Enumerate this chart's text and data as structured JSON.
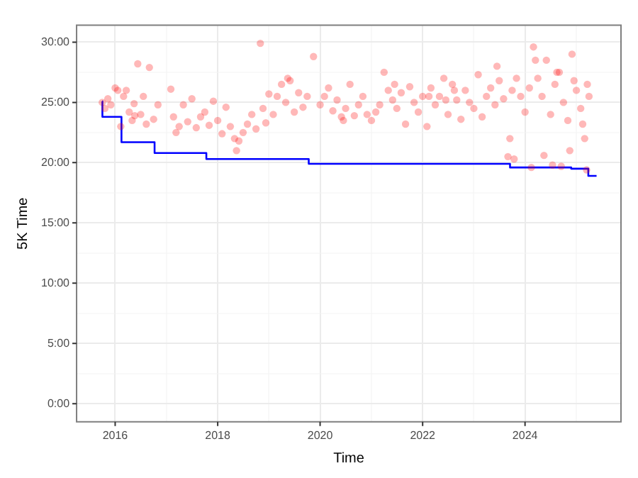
{
  "chart_data": {
    "type": "scatter",
    "xlabel": "Time",
    "ylabel": "5K Time",
    "grid": true,
    "legend": false,
    "xlim": [
      "2015-04",
      "2025-11-15"
    ],
    "ylim": [
      -1.5,
      31.4
    ],
    "xticks": [
      "2016",
      {
        "value": "2017",
        "label": null
      },
      "2018",
      {
        "value": "2019",
        "label": null
      },
      "2020",
      {
        "value": "2021",
        "label": null
      },
      "2022",
      {
        "value": "2023",
        "label": null
      },
      "2024",
      {
        "value": "2025",
        "label": null
      }
    ],
    "yticks": [
      {
        "value": 0,
        "label": "0:00"
      },
      {
        "value": 2.5,
        "label": null
      },
      {
        "value": 5,
        "label": "5:00"
      },
      {
        "value": 7.5,
        "label": null
      },
      {
        "value": 10,
        "label": "10:00"
      },
      {
        "value": 12.5,
        "label": null
      },
      {
        "value": 15,
        "label": "15:00"
      },
      {
        "value": 17.5,
        "label": null
      },
      {
        "value": 20,
        "label": "20:00"
      },
      {
        "value": 22.5,
        "label": null
      },
      {
        "value": 25,
        "label": "25:00"
      },
      {
        "value": 27.5,
        "label": null
      },
      {
        "value": 30,
        "label": "30:00"
      }
    ],
    "series": [
      {
        "color": "#ff0000",
        "marker": "circle",
        "x": [
          "2015-10-01",
          "2015-10-20",
          "2015-11-10",
          "2015-12-01",
          "2016-01-01",
          "2016-01-20",
          "2016-02-10",
          "2016-03-01",
          "2016-03-20",
          "2016-04-10",
          "2016-05-01",
          "2016-05-20",
          "2016-06-10",
          "2016-07-01",
          "2016-07-20",
          "2016-08-10",
          "2016-09-01",
          "2016-10-01",
          "2016-11-01",
          "2017-02-01",
          "2017-02-20",
          "2017-03-10",
          "2017-04-01",
          "2017-05-01",
          "2017-06-01",
          "2017-07-01",
          "2017-08-01",
          "2017-09-01",
          "2017-10-01",
          "2017-11-01",
          "2017-12-01",
          "2018-01-01",
          "2018-02-01",
          "2018-03-01",
          "2018-04-01",
          "2018-05-01",
          "2018-06-01",
          "2018-07-01",
          "2018-08-01",
          "2018-09-01",
          "2018-10-01",
          "2018-11-01",
          "2018-11-20",
          "2018-12-10",
          "2019-01-01",
          "2019-02-01",
          "2019-03-01",
          "2019-04-01",
          "2019-05-01",
          "2019-06-01",
          "2019-07-01",
          "2019-08-01",
          "2019-09-01",
          "2019-10-01",
          "2019-11-15",
          "2020-01-01",
          "2020-02-01",
          "2020-03-01",
          "2020-04-01",
          "2020-05-01",
          "2020-06-01",
          "2020-07-01",
          "2020-08-01",
          "2020-09-01",
          "2020-10-01",
          "2020-11-01",
          "2020-12-01",
          "2021-01-01",
          "2021-02-01",
          "2021-03-01",
          "2021-04-01",
          "2021-05-01",
          "2021-06-01",
          "2021-07-01",
          "2021-08-01",
          "2021-09-01",
          "2021-10-01",
          "2021-11-01",
          "2021-12-01",
          "2022-01-01",
          "2022-02-01",
          "2022-03-01",
          "2022-04-01",
          "2022-05-01",
          "2022-06-01",
          "2022-07-01",
          "2022-08-01",
          "2022-09-01",
          "2022-10-01",
          "2022-11-01",
          "2022-12-01",
          "2023-01-01",
          "2023-02-01",
          "2023-03-01",
          "2023-04-01",
          "2023-05-01",
          "2023-06-01",
          "2023-07-01",
          "2023-08-01",
          "2023-09-01",
          "2023-10-01",
          "2023-11-01",
          "2023-12-01",
          "2024-01-01",
          "2024-02-01",
          "2024-03-01",
          "2024-04-01",
          "2024-05-01",
          "2024-06-01",
          "2024-07-01",
          "2024-08-01",
          "2024-09-01",
          "2024-10-01",
          "2024-11-01",
          "2024-12-01",
          "2025-01-01",
          "2025-02-01",
          "2025-03-01",
          "2025-04-01",
          "2016-05-15",
          "2018-05-15",
          "2019-05-15",
          "2020-06-15",
          "2021-06-15",
          "2022-06-15",
          "2023-06-15",
          "2023-09-15",
          "2023-10-15",
          "2024-02-15",
          "2024-05-15",
          "2024-07-15",
          "2024-09-15",
          "2024-11-15",
          "2025-02-15",
          "2025-03-15",
          "2022-02-15",
          "2022-08-15",
          "2024-03-15",
          "2024-08-15",
          "2024-12-15",
          "2025-03-20"
        ],
        "values": [
          25.0,
          24.5,
          25.3,
          24.8,
          26.2,
          26.0,
          23.0,
          25.5,
          26.0,
          24.2,
          23.5,
          23.9,
          28.2,
          24.0,
          25.5,
          23.2,
          27.9,
          23.6,
          24.8,
          26.1,
          23.8,
          22.5,
          23.0,
          24.8,
          23.4,
          25.3,
          22.9,
          23.8,
          24.2,
          23.1,
          25.1,
          23.5,
          22.4,
          24.6,
          23.0,
          22.0,
          21.8,
          22.5,
          23.2,
          24.0,
          22.8,
          29.9,
          24.5,
          23.3,
          25.7,
          24.0,
          25.5,
          26.5,
          25.0,
          26.8,
          24.2,
          25.8,
          24.6,
          25.5,
          28.8,
          24.8,
          25.5,
          26.2,
          24.3,
          25.2,
          23.8,
          24.5,
          26.5,
          23.9,
          24.8,
          25.5,
          24.0,
          23.5,
          24.2,
          24.8,
          27.5,
          26.0,
          25.2,
          24.5,
          25.8,
          23.2,
          26.3,
          25.0,
          24.2,
          25.5,
          23.0,
          26.2,
          24.8,
          25.5,
          27.0,
          24.0,
          26.5,
          25.2,
          23.6,
          26.0,
          25.0,
          24.5,
          27.3,
          23.8,
          25.5,
          26.2,
          24.8,
          26.8,
          25.3,
          20.5,
          26.0,
          27.0,
          25.5,
          24.2,
          26.2,
          29.6,
          27.0,
          25.5,
          28.5,
          24.0,
          26.5,
          27.5,
          25.0,
          23.5,
          29.0,
          26.0,
          24.5,
          22.0,
          25.5,
          24.9,
          21.0,
          27.0,
          23.5,
          26.5,
          25.2,
          28.0,
          22.0,
          20.3,
          19.6,
          20.6,
          19.8,
          19.7,
          21.0,
          23.2,
          19.4,
          25.5,
          26.0,
          28.5,
          27.5,
          26.8,
          26.5
        ]
      },
      {
        "type": "step",
        "color": "#0000ff",
        "x": [
          "2015-10-01",
          "2015-10-02",
          "2016-02-15",
          "2016-10-08",
          "2017-10-12",
          "2019-10-12",
          "2023-09-16",
          "2024-11-25",
          "2025-03-27",
          "2025-05-25"
        ],
        "values": [
          25.1,
          23.8,
          21.7,
          20.8,
          20.3,
          19.9,
          19.6,
          19.5,
          18.9,
          18.9
        ]
      }
    ]
  }
}
